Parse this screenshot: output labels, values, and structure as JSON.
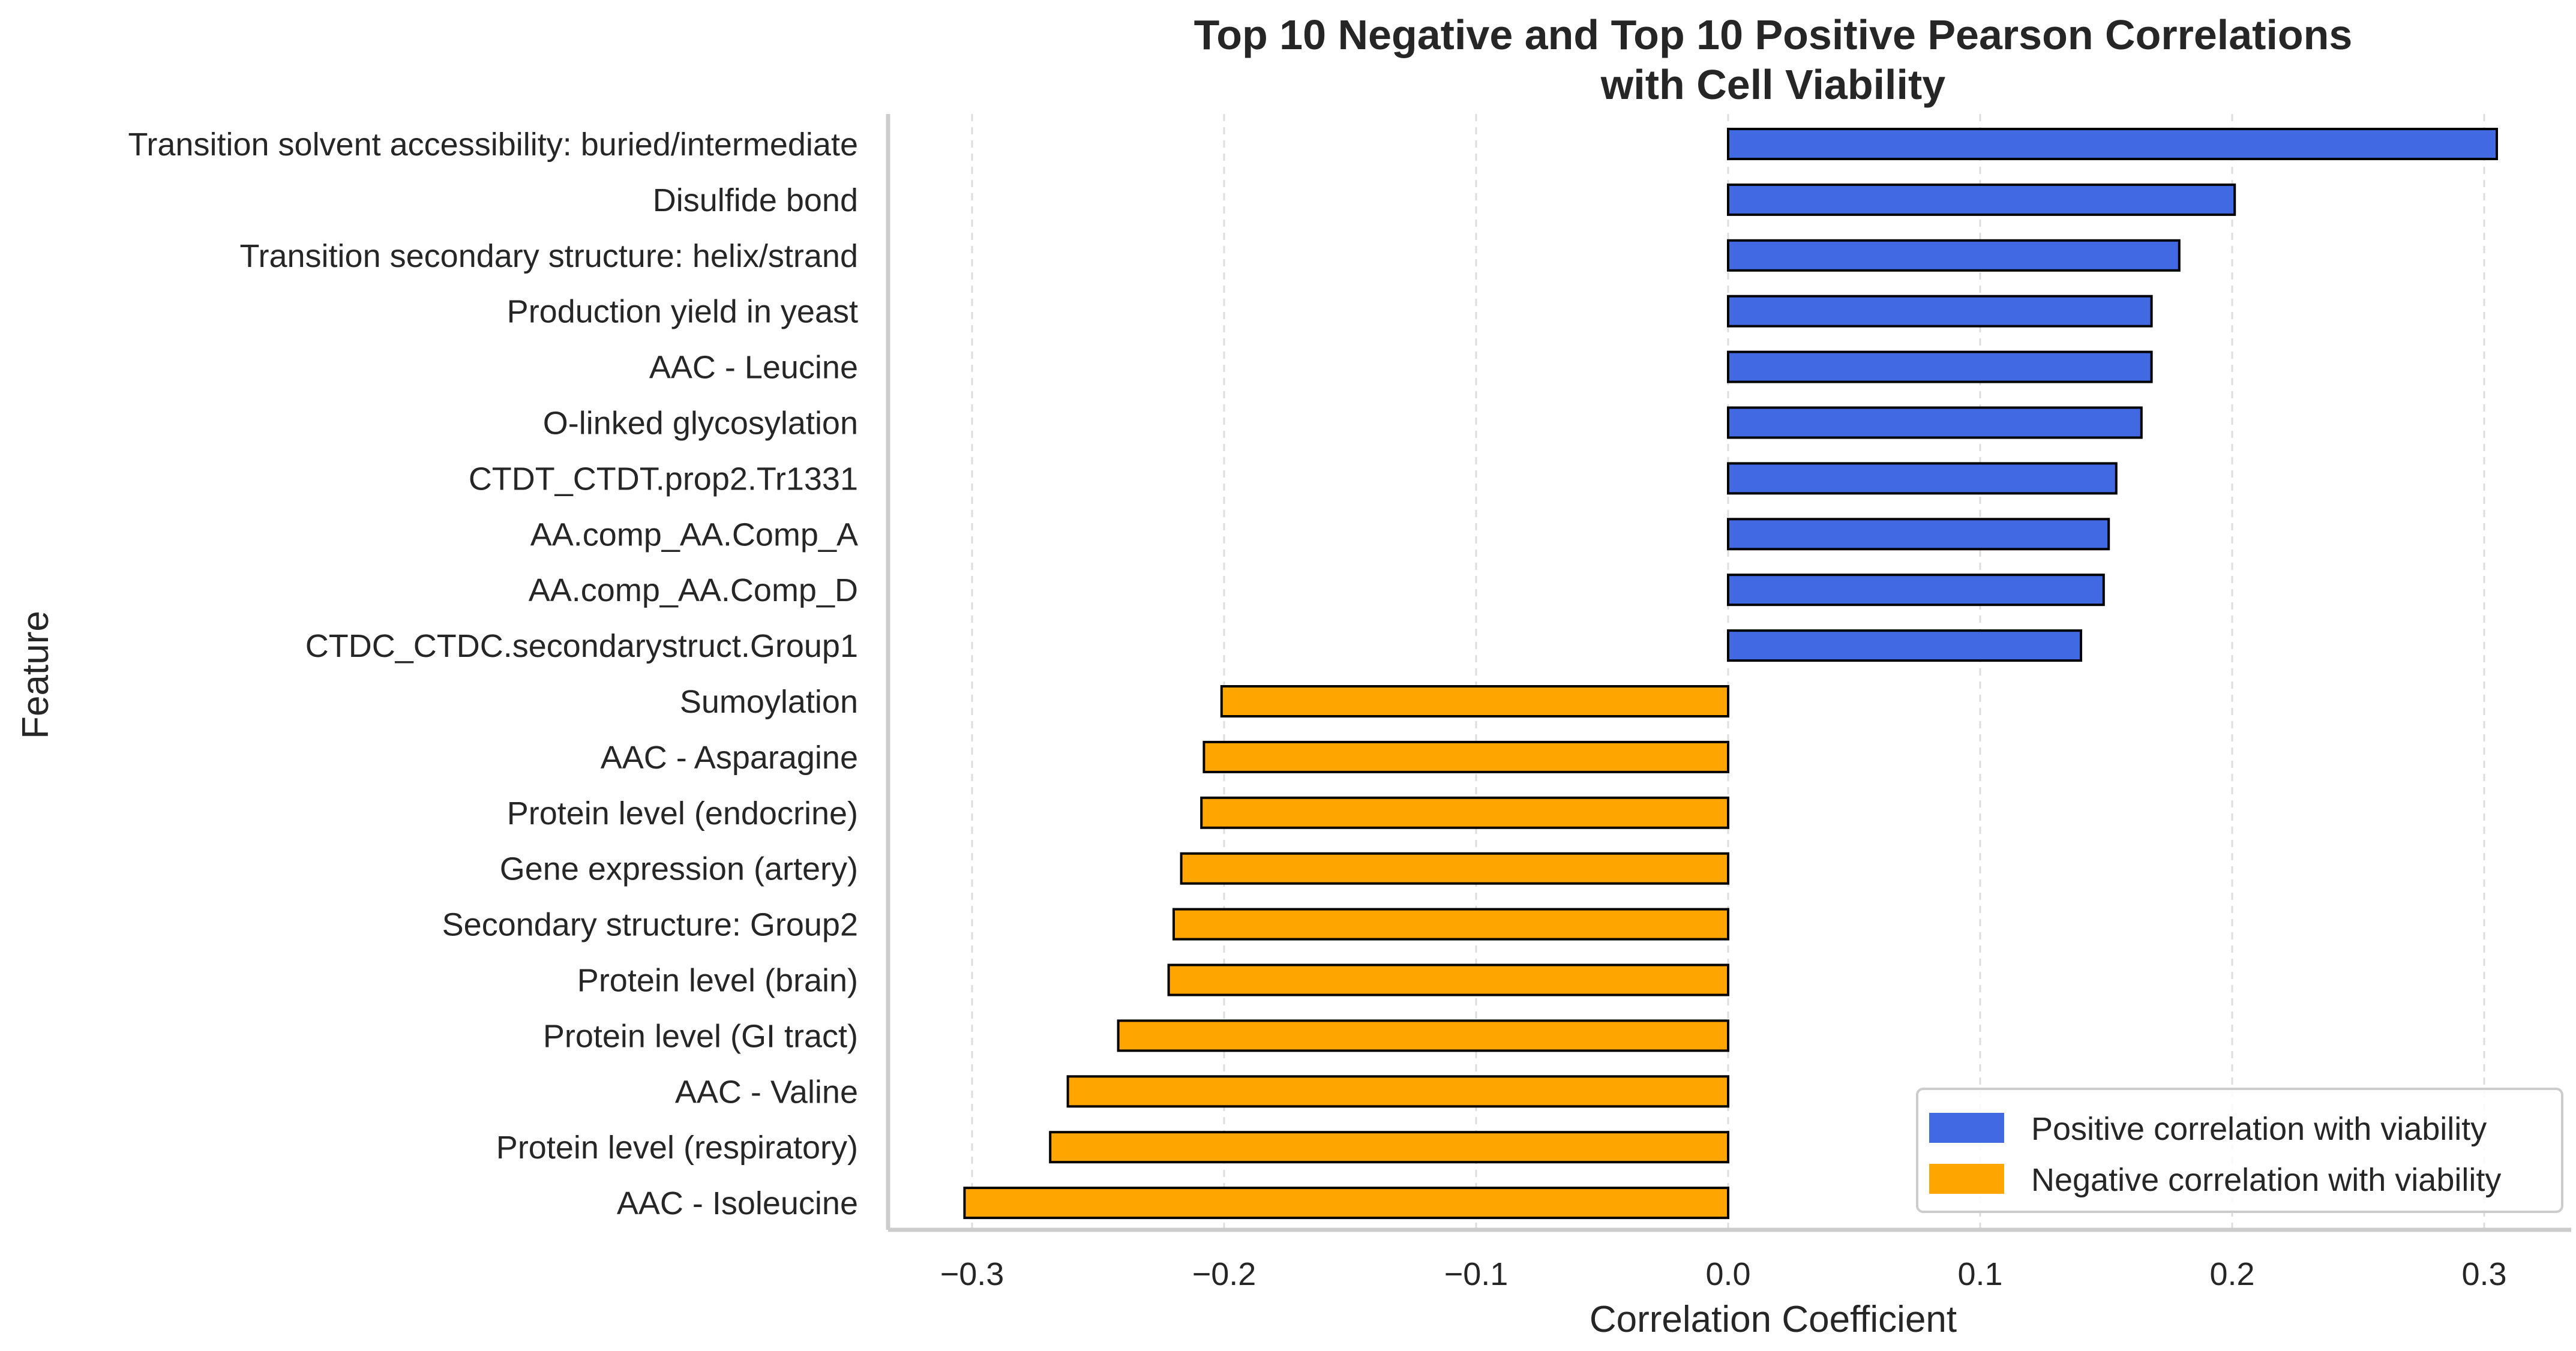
{
  "chart_data": {
    "type": "bar",
    "orientation": "horizontal",
    "title": "Top 10 Negative and Top 10 Positive Pearson Correlations",
    "subtitle": "with Cell Viability",
    "xlabel": "Correlation Coefficient",
    "ylabel": "Feature",
    "xlim": [
      -0.33,
      0.33
    ],
    "xticks": [
      -0.3,
      -0.2,
      -0.1,
      0.0,
      0.1,
      0.2,
      0.3
    ],
    "xtick_labels": [
      "−0.3",
      "−0.2",
      "−0.1",
      "0.0",
      "0.1",
      "0.2",
      "0.3"
    ],
    "grid": "x-dashed",
    "legend_position": "bottom-right",
    "colors": {
      "positive": "#4169E1",
      "negative": "#FFA500",
      "edge": "#000000"
    },
    "legend": [
      {
        "label": "Positive correlation with viability",
        "color": "#4169E1"
      },
      {
        "label": "Negative correlation with viability",
        "color": "#FFA500"
      }
    ],
    "categories": [
      "Transition solvent accessibility: buried/intermediate",
      "Disulfide bond",
      "Transition secondary structure: helix/strand",
      "Production yield in yeast",
      "AAC - Leucine",
      "O-linked glycosylation",
      "CTDT_CTDT.prop2.Tr1331",
      "AA.comp_AA.Comp_A",
      "AA.comp_AA.Comp_D",
      "CTDC_CTDC.secondarystruct.Group1",
      "Sumoylation",
      "AAC - Asparagine",
      "Protein level (endocrine)",
      "Gene expression (artery)",
      "Secondary structure: Group2",
      "Protein level (brain)",
      "Protein level (GI tract)",
      "AAC - Valine",
      "Protein level (respiratory)",
      "AAC - Isoleucine"
    ],
    "values": [
      0.305,
      0.201,
      0.179,
      0.168,
      0.168,
      0.164,
      0.154,
      0.151,
      0.149,
      0.14,
      -0.201,
      -0.208,
      -0.209,
      -0.217,
      -0.22,
      -0.222,
      -0.242,
      -0.262,
      -0.269,
      -0.303
    ]
  }
}
